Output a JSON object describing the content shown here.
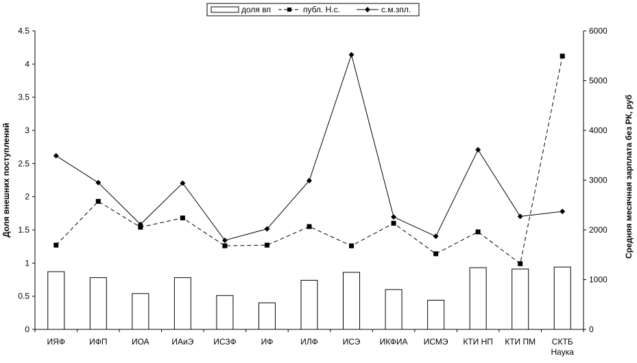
{
  "chart_data": {
    "type": "bar",
    "categories": [
      [
        "ИЯФ"
      ],
      [
        "ИФП"
      ],
      [
        "ИОА"
      ],
      [
        "ИАиЭ"
      ],
      [
        "ИСЗФ"
      ],
      [
        "ИФ"
      ],
      [
        "ИЛФ"
      ],
      [
        "ИСЭ"
      ],
      [
        "ИКФИА"
      ],
      [
        "ИСМЭ"
      ],
      [
        "КТИ НП"
      ],
      [
        "КТИ ПМ"
      ],
      [
        "СКТБ",
        "Наука"
      ]
    ],
    "series": [
      {
        "name": "доля вп",
        "kind": "bar",
        "axis": "left",
        "values": [
          0.87,
          0.78,
          0.54,
          0.78,
          0.51,
          0.4,
          0.74,
          0.86,
          0.6,
          0.44,
          0.93,
          0.91,
          0.94
        ]
      },
      {
        "name": "публ. Н.с.",
        "kind": "line",
        "style": "dashed",
        "marker": "square",
        "axis": "left",
        "values": [
          1.27,
          1.93,
          1.54,
          1.68,
          1.26,
          1.27,
          1.55,
          1.26,
          1.6,
          1.14,
          1.47,
          0.99,
          4.12
        ]
      },
      {
        "name": "с.м.зпл.",
        "kind": "line",
        "style": "solid",
        "marker": "diamond",
        "axis": "right",
        "values": [
          3490,
          2950,
          2110,
          2940,
          1790,
          2020,
          2990,
          5520,
          2260,
          1870,
          3610,
          2270,
          2370
        ]
      }
    ],
    "ylabel": "Доля внешних поступлений",
    "y2label": "Средняя месячная зарплата без РК, руб",
    "ylim": [
      0,
      4.5
    ],
    "y2lim": [
      0,
      6000
    ],
    "yticks": [
      "0",
      "0.5",
      "1",
      "1.5",
      "2",
      "2.5",
      "3",
      "3.5",
      "4",
      "4.5"
    ],
    "y2ticks": [
      "0",
      "1000",
      "2000",
      "3000",
      "4000",
      "5000",
      "6000"
    ],
    "legend_position": "top-center",
    "grid": false,
    "colors": {
      "bar_fill": "#ffffff",
      "stroke": "#000000"
    }
  }
}
